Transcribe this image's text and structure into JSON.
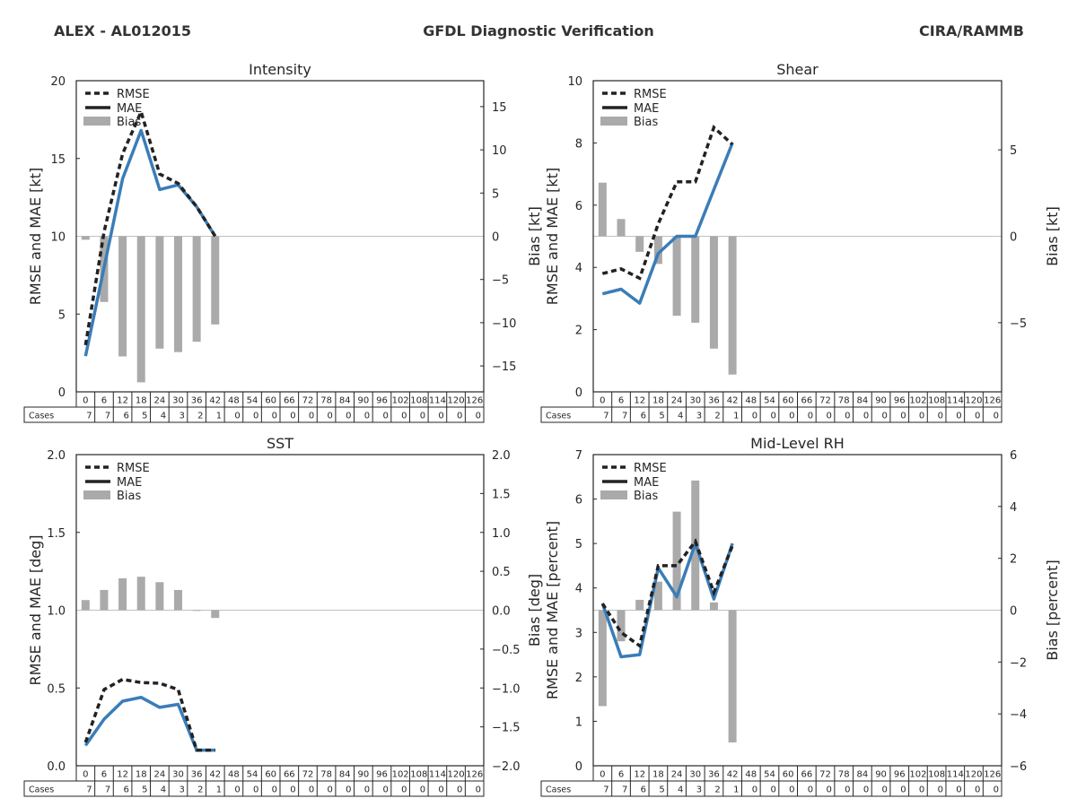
{
  "header": {
    "storm": "ALEX - AL012015",
    "title": "GFDL Diagnostic Verification",
    "agency": "CIRA/RAMMB"
  },
  "colors": {
    "rmse": "#222222",
    "mae": "#3a7db7",
    "bias": "#aaaaaa",
    "zero_line": "#c0c0c0"
  },
  "legend": [
    "RMSE",
    "MAE",
    "Bias"
  ],
  "table": {
    "row_label": "Cases",
    "hours": [
      "0",
      "6",
      "12",
      "18",
      "24",
      "30",
      "36",
      "42",
      "48",
      "54",
      "60",
      "66",
      "72",
      "78",
      "84",
      "90",
      "96",
      "102",
      "108",
      "114",
      "120",
      "126"
    ],
    "cases": [
      "7",
      "7",
      "6",
      "5",
      "4",
      "3",
      "2",
      "1",
      "0",
      "0",
      "0",
      "0",
      "0",
      "0",
      "0",
      "0",
      "0",
      "0",
      "0",
      "0",
      "0",
      "0"
    ]
  },
  "chart_data": [
    {
      "type": "line",
      "title": "Intensity",
      "ylabel": "RMSE and MAE [kt]",
      "y2label": "Bias [kt]",
      "ylim": [
        0,
        20
      ],
      "y2lim": [
        -18,
        18
      ],
      "yticks": [
        "0",
        "5",
        "10",
        "15",
        "20"
      ],
      "y2ticks": [
        "−15",
        "−10",
        "−5",
        "0",
        "5",
        "10",
        "15"
      ],
      "x": [
        0,
        6,
        12,
        18,
        24,
        30,
        36,
        42
      ],
      "rmse": [
        3.0,
        10.3,
        15.3,
        18.0,
        14.0,
        13.4,
        11.9,
        10.0
      ],
      "mae": [
        2.3,
        8.0,
        13.7,
        16.8,
        13.0,
        13.3,
        11.9,
        10.0
      ],
      "bias": [
        -0.4,
        -7.6,
        -13.9,
        -16.9,
        -13.0,
        -13.4,
        -12.2,
        -10.2
      ]
    },
    {
      "type": "line",
      "title": "Shear",
      "ylabel": "RMSE and MAE [kt]",
      "y2label": "Bias [kt]",
      "ylim": [
        0,
        10
      ],
      "y2lim": [
        -9,
        9
      ],
      "yticks": [
        "0",
        "2",
        "4",
        "6",
        "8",
        "10"
      ],
      "y2ticks": [
        "−5",
        "0",
        "5"
      ],
      "x": [
        0,
        6,
        12,
        18,
        24,
        30,
        36,
        42
      ],
      "rmse": [
        3.8,
        3.95,
        3.65,
        5.4,
        6.75,
        6.75,
        8.5,
        7.95
      ],
      "mae": [
        3.15,
        3.3,
        2.85,
        4.45,
        5.0,
        5.0,
        6.5,
        8.0
      ],
      "bias": [
        3.1,
        1.0,
        -0.9,
        -1.6,
        -4.6,
        -5.0,
        -6.5,
        -8.0
      ]
    },
    {
      "type": "line",
      "title": "SST",
      "ylabel": "RMSE and MAE [deg]",
      "y2label": "Bias [deg]",
      "ylim": [
        0,
        2
      ],
      "y2lim": [
        -2,
        2
      ],
      "yticks": [
        "0.0",
        "0.5",
        "1.0",
        "1.5",
        "2.0"
      ],
      "y2ticks": [
        "−2.0",
        "−1.5",
        "−1.0",
        "−0.5",
        "0.0",
        "0.5",
        "1.0",
        "1.5",
        "2.0"
      ],
      "x": [
        0,
        6,
        12,
        18,
        24,
        30,
        36,
        42
      ],
      "rmse": [
        0.15,
        0.49,
        0.555,
        0.535,
        0.53,
        0.49,
        0.1,
        0.1
      ],
      "mae": [
        0.13,
        0.3,
        0.415,
        0.44,
        0.375,
        0.395,
        0.1,
        0.1
      ],
      "bias": [
        0.13,
        0.26,
        0.41,
        0.43,
        0.36,
        0.26,
        0.0,
        -0.1
      ]
    },
    {
      "type": "line",
      "title": "Mid-Level RH",
      "ylabel": "RMSE and MAE [percent]",
      "y2label": "Bias [percent]",
      "ylim": [
        0,
        7
      ],
      "y2lim": [
        -6,
        6
      ],
      "yticks": [
        "0",
        "1",
        "2",
        "3",
        "4",
        "5",
        "6",
        "7"
      ],
      "y2ticks": [
        "−6",
        "−4",
        "−2",
        "0",
        "2",
        "4",
        "6"
      ],
      "x": [
        0,
        6,
        12,
        18,
        24,
        30,
        36,
        42
      ],
      "rmse": [
        3.65,
        3.0,
        2.7,
        4.5,
        4.5,
        5.05,
        3.9,
        4.95
      ],
      "mae": [
        3.65,
        2.45,
        2.5,
        4.45,
        3.8,
        5.0,
        3.75,
        5.0
      ],
      "bias": [
        -3.7,
        -1.2,
        0.4,
        1.1,
        3.8,
        5.0,
        0.3,
        -5.1
      ]
    }
  ]
}
